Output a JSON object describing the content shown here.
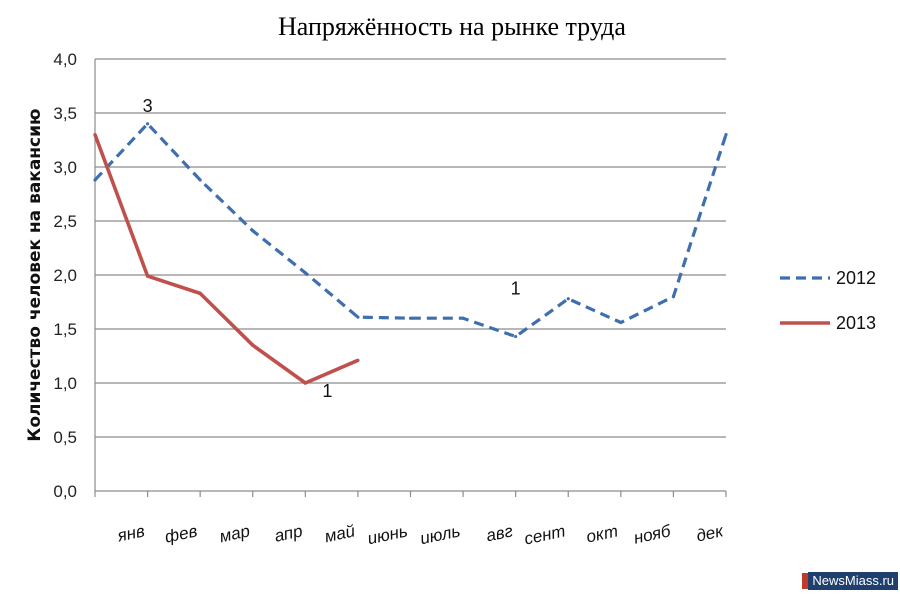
{
  "chart_data": {
    "type": "line",
    "title": "Напряжённость на рынке труда",
    "xlabel": "",
    "ylabel": "Количество человек на вакансию",
    "ylim": [
      0,
      4
    ],
    "yticks": [
      "0,0",
      "0,5",
      "1,0",
      "1,5",
      "2,0",
      "2,5",
      "3,0",
      "3,5",
      "4,0"
    ],
    "categories": [
      "янв",
      "фев",
      "мар",
      "апр",
      "май",
      "июнь",
      "июль",
      "авг",
      "сент",
      "окт",
      "нояб",
      "дек"
    ],
    "grid": true,
    "legend_position": "right",
    "series": [
      {
        "name": "2012",
        "color": "#3f6fae",
        "dash": true,
        "x": [
          0,
          1,
          2,
          3,
          4,
          5,
          6,
          7,
          8,
          9,
          10,
          11,
          12
        ],
        "values": [
          2.88,
          3.4,
          2.88,
          2.41,
          2.02,
          1.61,
          1.6,
          1.6,
          1.43,
          1.78,
          1.56,
          1.8,
          3.3
        ]
      },
      {
        "name": "2013",
        "color": "#c0504d",
        "dash": false,
        "x": [
          0,
          1,
          2,
          3,
          4,
          5
        ],
        "values": [
          3.3,
          1.99,
          1.83,
          1.35,
          1.0,
          1.21
        ]
      }
    ],
    "annotations": [
      {
        "text": "3",
        "x": 1,
        "y": 3.4
      },
      {
        "text": "1",
        "x": 4,
        "y": 1.0
      },
      {
        "text": "1",
        "x": 8,
        "y": 1.43
      }
    ]
  },
  "watermark": {
    "text": "NewsMiass.ru"
  }
}
